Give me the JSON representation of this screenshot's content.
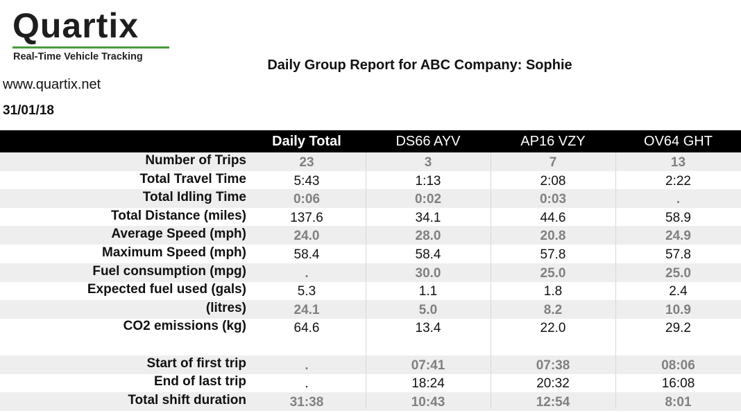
{
  "header": {
    "logo": "Quartix",
    "tagline": "Real-Time Vehicle Tracking",
    "title": "Daily Group Report for ABC Company: Sophie",
    "website": "www.quartix.net",
    "date": "31/01/18"
  },
  "table": {
    "columns": [
      "Daily Total",
      "DS66 AYV",
      "AP16 VZY",
      "OV64 GHT"
    ],
    "rows": [
      {
        "label": "Number of Trips",
        "values": [
          "23",
          "3",
          "7",
          "13"
        ]
      },
      {
        "label": "Total Travel Time",
        "values": [
          "5:43",
          "1:13",
          "2:08",
          "2:22"
        ]
      },
      {
        "label": "Total Idling Time",
        "values": [
          "0:06",
          "0:02",
          "0:03",
          "."
        ]
      },
      {
        "label": "Total Distance (miles)",
        "values": [
          "137.6",
          "34.1",
          "44.6",
          "58.9"
        ]
      },
      {
        "label": "Average Speed (mph)",
        "values": [
          "24.0",
          "28.0",
          "20.8",
          "24.9"
        ]
      },
      {
        "label": "Maximum Speed (mph)",
        "values": [
          "58.4",
          "58.4",
          "57.8",
          "57.8"
        ]
      },
      {
        "label": "Fuel consumption (mpg)",
        "values": [
          ".",
          "30.0",
          "25.0",
          "25.0"
        ]
      },
      {
        "label": "Expected fuel used (gals)",
        "values": [
          "5.3",
          "1.1",
          "1.8",
          "2.4"
        ]
      },
      {
        "label": "(litres)",
        "values": [
          "24.1",
          "5.0",
          "8.2",
          "10.9"
        ]
      },
      {
        "label": "CO2 emissions (kg)",
        "values": [
          "64.6",
          "13.4",
          "22.0",
          "29.2"
        ]
      },
      {
        "label": "Start of first trip",
        "values": [
          ".",
          "07:41",
          "07:38",
          "08:06"
        ]
      },
      {
        "label": "End of last trip",
        "values": [
          ".",
          "18:24",
          "20:32",
          "16:08"
        ]
      },
      {
        "label": "Total shift duration",
        "values": [
          "31:38",
          "10:43",
          "12:54",
          "8:01"
        ]
      }
    ]
  }
}
